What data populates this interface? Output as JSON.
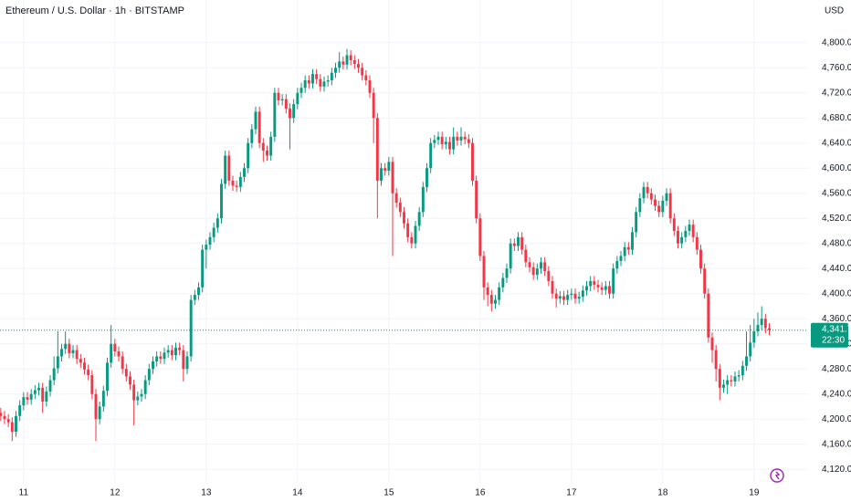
{
  "chart_data": {
    "type": "candlestick",
    "title": "Ethereum / U.S. Dollar · 1h · BITSTAMP",
    "currency": "USD",
    "up_color": "#089981",
    "down_color": "#f23645",
    "grid": true,
    "ylim": [
      4097,
      4868
    ],
    "yticks": [
      {
        "value": 4120,
        "label": "4,120.0"
      },
      {
        "value": 4160,
        "label": "4,160.0"
      },
      {
        "value": 4200,
        "label": "4,200.0"
      },
      {
        "value": 4240,
        "label": "4,240.0"
      },
      {
        "value": 4280,
        "label": "4,280.0"
      },
      {
        "value": 4320,
        "label": "4,320.0"
      },
      {
        "value": 4360,
        "label": "4,360.0"
      },
      {
        "value": 4400,
        "label": "4,400.0"
      },
      {
        "value": 4440,
        "label": "4,440.0"
      },
      {
        "value": 4480,
        "label": "4,480.0"
      },
      {
        "value": 4520,
        "label": "4,520.0"
      },
      {
        "value": 4560,
        "label": "4,560.0"
      },
      {
        "value": 4600,
        "label": "4,600.0"
      },
      {
        "value": 4640,
        "label": "4,640.0"
      },
      {
        "value": 4680,
        "label": "4,680.0"
      },
      {
        "value": 4720,
        "label": "4,720.0"
      },
      {
        "value": 4760,
        "label": "4,760.0"
      },
      {
        "value": 4800,
        "label": "4,800.0"
      }
    ],
    "xlim": [
      -0.2,
      212.2
    ],
    "xticks": [
      {
        "value": 6,
        "label": "11"
      },
      {
        "value": 30,
        "label": "12"
      },
      {
        "value": 54,
        "label": "13"
      },
      {
        "value": 78,
        "label": "14"
      },
      {
        "value": 102,
        "label": "15"
      },
      {
        "value": 126,
        "label": "16"
      },
      {
        "value": 150,
        "label": "17"
      },
      {
        "value": 174,
        "label": "18"
      },
      {
        "value": 198,
        "label": "19"
      }
    ],
    "last_price": {
      "value": 4341.7,
      "label": "4,341.7"
    },
    "countdown": "22:30",
    "ohlc": {
      "open": [
        4210,
        4205,
        4200,
        4195,
        4180,
        4205,
        4222,
        4235,
        4231,
        4240,
        4246,
        4250,
        4228,
        4244,
        4262,
        4281,
        4300,
        4312,
        4320,
        4305,
        4310,
        4296,
        4290,
        4279,
        4270,
        4240,
        4200,
        4220,
        4245,
        4290,
        4320,
        4308,
        4300,
        4280,
        4268,
        4255,
        4230,
        4236,
        4240,
        4262,
        4280,
        4292,
        4300,
        4296,
        4306,
        4310,
        4302,
        4314,
        4310,
        4280,
        4300,
        4390,
        4398,
        4410,
        4470,
        4478,
        4490,
        4505,
        4520,
        4575,
        4620,
        4580,
        4572,
        4570,
        4586,
        4600,
        4640,
        4662,
        4690,
        4640,
        4628,
        4620,
        4650,
        4720,
        4708,
        4710,
        4695,
        4680,
        4702,
        4720,
        4728,
        4740,
        4735,
        4750,
        4742,
        4730,
        4738,
        4740,
        4752,
        4760,
        4770,
        4765,
        4780,
        4772,
        4766,
        4760,
        4748,
        4740,
        4720,
        4680,
        4580,
        4600,
        4596,
        4610,
        4560,
        4545,
        4530,
        4512,
        4490,
        4480,
        4508,
        4530,
        4570,
        4600,
        4640,
        4645,
        4650,
        4638,
        4642,
        4630,
        4650,
        4644,
        4650,
        4646,
        4640,
        4580,
        4520,
        4460,
        4410,
        4398,
        4384,
        4390,
        4410,
        4425,
        4440,
        4480,
        4476,
        4490,
        4470,
        4450,
        4442,
        4430,
        4440,
        4450,
        4436,
        4420,
        4400,
        4392,
        4396,
        4390,
        4398,
        4400,
        4392,
        4395,
        4405,
        4412,
        4420,
        4414,
        4410,
        4406,
        4412,
        4400,
        4440,
        4452,
        4460,
        4474,
        4470,
        4498,
        4530,
        4552,
        4570,
        4560,
        4550,
        4540,
        4530,
        4548,
        4560,
        4520,
        4500,
        4480,
        4490,
        4500,
        4510,
        4490,
        4470,
        4440,
        4400,
        4330,
        4310,
        4280,
        4250,
        4255,
        4262,
        4260,
        4268,
        4270,
        4285,
        4300,
        4322,
        4340,
        4350,
        4360,
        4345
      ],
      "high": [
        4218,
        4213,
        4208,
        4203,
        4213,
        4230,
        4243,
        4243,
        4248,
        4254,
        4258,
        4258,
        4252,
        4270,
        4300,
        4340,
        4320,
        4340,
        4328,
        4318,
        4318,
        4304,
        4298,
        4287,
        4278,
        4248,
        4228,
        4253,
        4298,
        4350,
        4328,
        4316,
        4308,
        4288,
        4276,
        4263,
        4244,
        4248,
        4270,
        4288,
        4300,
        4308,
        4308,
        4314,
        4318,
        4318,
        4322,
        4322,
        4318,
        4308,
        4398,
        4406,
        4418,
        4478,
        4486,
        4498,
        4513,
        4528,
        4583,
        4628,
        4628,
        4588,
        4580,
        4594,
        4608,
        4648,
        4670,
        4698,
        4698,
        4648,
        4636,
        4658,
        4728,
        4728,
        4718,
        4718,
        4703,
        4710,
        4728,
        4736,
        4748,
        4748,
        4758,
        4758,
        4750,
        4746,
        4748,
        4760,
        4768,
        4785,
        4778,
        4790,
        4788,
        4780,
        4774,
        4768,
        4756,
        4748,
        4728,
        4688,
        4608,
        4608,
        4618,
        4618,
        4568,
        4553,
        4538,
        4520,
        4498,
        4516,
        4538,
        4578,
        4608,
        4648,
        4653,
        4658,
        4658,
        4650,
        4650,
        4665,
        4658,
        4665,
        4658,
        4654,
        4648,
        4588,
        4528,
        4468,
        4418,
        4406,
        4398,
        4418,
        4433,
        4448,
        4488,
        4488,
        4498,
        4498,
        4478,
        4458,
        4450,
        4448,
        4458,
        4458,
        4444,
        4428,
        4408,
        4404,
        4404,
        4406,
        4408,
        4408,
        4403,
        4413,
        4420,
        4428,
        4428,
        4422,
        4418,
        4420,
        4420,
        4448,
        4460,
        4468,
        4482,
        4482,
        4506,
        4538,
        4560,
        4578,
        4578,
        4568,
        4558,
        4548,
        4556,
        4568,
        4568,
        4528,
        4508,
        4498,
        4508,
        4518,
        4518,
        4498,
        4478,
        4448,
        4408,
        4338,
        4318,
        4288,
        4263,
        4270,
        4270,
        4276,
        4278,
        4293,
        4340,
        4350,
        4360,
        4370,
        4380,
        4368,
        4353
      ],
      "low": [
        4197,
        4192,
        4187,
        4165,
        4172,
        4197,
        4214,
        4223,
        4223,
        4232,
        4238,
        4210,
        4220,
        4236,
        4254,
        4273,
        4292,
        4304,
        4297,
        4297,
        4288,
        4282,
        4271,
        4262,
        4232,
        4165,
        4192,
        4212,
        4237,
        4282,
        4300,
        4292,
        4272,
        4260,
        4247,
        4190,
        4222,
        4228,
        4232,
        4254,
        4272,
        4284,
        4288,
        4288,
        4298,
        4294,
        4294,
        4302,
        4260,
        4272,
        4292,
        4382,
        4390,
        4402,
        4440,
        4470,
        4482,
        4497,
        4512,
        4567,
        4572,
        4564,
        4562,
        4562,
        4578,
        4592,
        4632,
        4654,
        4632,
        4610,
        4612,
        4612,
        4642,
        4700,
        4700,
        4687,
        4630,
        4672,
        4694,
        4712,
        4720,
        4727,
        4727,
        4734,
        4722,
        4722,
        4730,
        4732,
        4744,
        4752,
        4757,
        4757,
        4764,
        4758,
        4752,
        4740,
        4732,
        4712,
        4640,
        4520,
        4572,
        4588,
        4588,
        4460,
        4537,
        4522,
        4504,
        4482,
        4472,
        4472,
        4500,
        4522,
        4562,
        4592,
        4632,
        4637,
        4630,
        4630,
        4622,
        4622,
        4636,
        4636,
        4638,
        4632,
        4572,
        4512,
        4452,
        4390,
        4380,
        4372,
        4376,
        4382,
        4402,
        4417,
        4432,
        4468,
        4468,
        4462,
        4442,
        4434,
        4422,
        4422,
        4432,
        4428,
        4412,
        4392,
        4378,
        4384,
        4382,
        4382,
        4390,
        4384,
        4384,
        4387,
        4397,
        4404,
        4406,
        4402,
        4398,
        4398,
        4392,
        4392,
        4432,
        4444,
        4452,
        4462,
        4462,
        4490,
        4522,
        4544,
        4552,
        4542,
        4532,
        4522,
        4522,
        4540,
        4512,
        4492,
        4472,
        4472,
        4482,
        4492,
        4482,
        4462,
        4432,
        4392,
        4322,
        4290,
        4260,
        4230,
        4242,
        4240,
        4252,
        4252,
        4260,
        4262,
        4277,
        4292,
        4314,
        4332,
        4342,
        4337,
        4334
      ],
      "close": [
        4205,
        4200,
        4195,
        4180,
        4205,
        4222,
        4235,
        4231,
        4240,
        4246,
        4250,
        4228,
        4244,
        4262,
        4281,
        4300,
        4312,
        4320,
        4305,
        4310,
        4296,
        4290,
        4279,
        4270,
        4240,
        4200,
        4220,
        4245,
        4290,
        4320,
        4308,
        4300,
        4280,
        4268,
        4255,
        4230,
        4236,
        4240,
        4262,
        4280,
        4292,
        4300,
        4296,
        4306,
        4310,
        4302,
        4314,
        4310,
        4280,
        4300,
        4390,
        4398,
        4410,
        4470,
        4478,
        4490,
        4505,
        4520,
        4575,
        4620,
        4580,
        4572,
        4570,
        4586,
        4600,
        4640,
        4662,
        4690,
        4640,
        4628,
        4620,
        4650,
        4720,
        4708,
        4710,
        4695,
        4680,
        4702,
        4720,
        4728,
        4740,
        4735,
        4750,
        4742,
        4730,
        4738,
        4740,
        4752,
        4760,
        4770,
        4765,
        4780,
        4772,
        4766,
        4760,
        4748,
        4740,
        4720,
        4680,
        4580,
        4600,
        4596,
        4610,
        4560,
        4545,
        4530,
        4512,
        4490,
        4480,
        4508,
        4530,
        4570,
        4600,
        4640,
        4645,
        4650,
        4638,
        4642,
        4630,
        4650,
        4644,
        4650,
        4646,
        4640,
        4580,
        4520,
        4460,
        4410,
        4398,
        4384,
        4390,
        4410,
        4425,
        4440,
        4480,
        4476,
        4490,
        4470,
        4450,
        4442,
        4430,
        4440,
        4450,
        4436,
        4420,
        4400,
        4392,
        4396,
        4390,
        4398,
        4400,
        4392,
        4395,
        4405,
        4412,
        4420,
        4414,
        4410,
        4406,
        4412,
        4400,
        4440,
        4452,
        4460,
        4474,
        4470,
        4498,
        4530,
        4552,
        4570,
        4560,
        4550,
        4540,
        4530,
        4548,
        4560,
        4520,
        4500,
        4480,
        4490,
        4500,
        4510,
        4490,
        4470,
        4440,
        4400,
        4330,
        4310,
        4280,
        4250,
        4255,
        4262,
        4260,
        4268,
        4270,
        4285,
        4300,
        4322,
        4340,
        4350,
        4360,
        4345,
        4342
      ]
    }
  }
}
